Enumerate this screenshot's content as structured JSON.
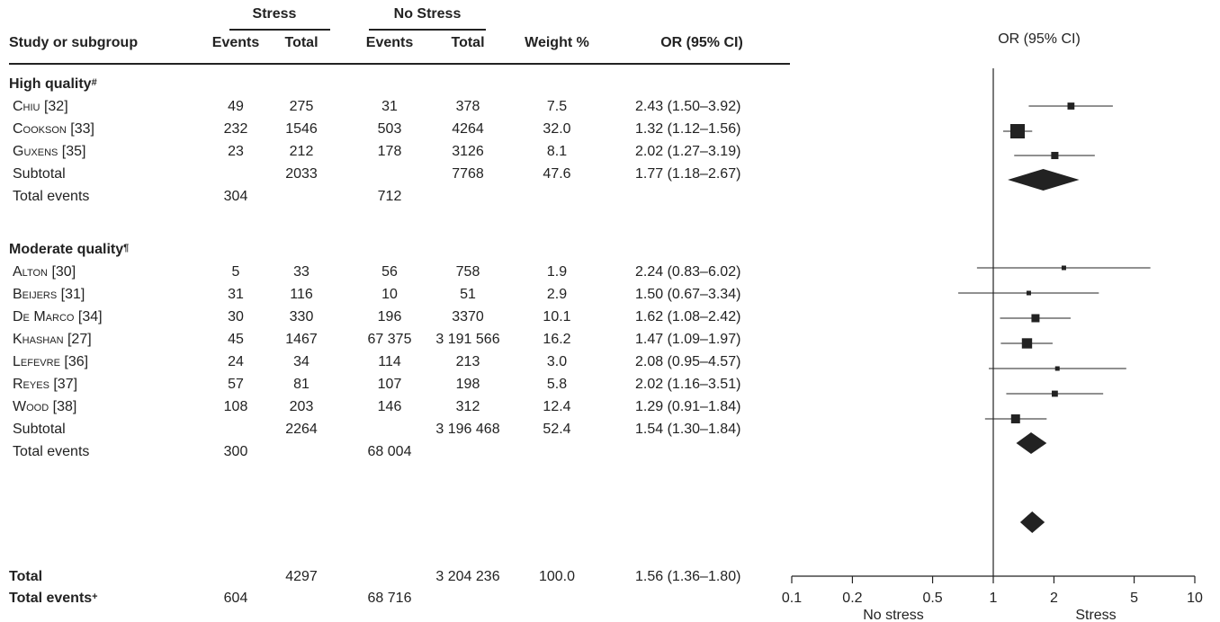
{
  "table": {
    "headers": {
      "group_stress": "Stress",
      "group_nostress": "No Stress",
      "study": "Study or subgroup",
      "events": "Events",
      "total": "Total",
      "weight": "Weight %",
      "or_ci": "OR (95% CI)"
    },
    "sections": [
      {
        "title": "High quality",
        "marker": "#",
        "studies": [
          {
            "name": "Chiu",
            "ref": "[32]",
            "s_events": "49",
            "s_total": "275",
            "n_events": "31",
            "n_total": "378",
            "weight": "7.5",
            "or_ci": "2.43 (1.50–3.92)"
          },
          {
            "name": "Cookson",
            "ref": "[33]",
            "s_events": "232",
            "s_total": "1546",
            "n_events": "503",
            "n_total": "4264",
            "weight": "32.0",
            "or_ci": "1.32 (1.12–1.56)"
          },
          {
            "name": "Guxens",
            "ref": "[35]",
            "s_events": "23",
            "s_total": "212",
            "n_events": "178",
            "n_total": "3126",
            "weight": "8.1",
            "or_ci": "2.02 (1.27–3.19)"
          }
        ],
        "subtotal": {
          "label": "Subtotal",
          "s_total": "2033",
          "n_total": "7768",
          "weight": "47.6",
          "or_ci": "1.77 (1.18–2.67)"
        },
        "total_events": {
          "label": "Total events",
          "s_events": "304",
          "n_events": "712"
        }
      },
      {
        "title": "Moderate quality",
        "marker": "¶",
        "studies": [
          {
            "name": "Alton",
            "ref": "[30]",
            "s_events": "5",
            "s_total": "33",
            "n_events": "56",
            "n_total": "758",
            "weight": "1.9",
            "or_ci": "2.24 (0.83–6.02)"
          },
          {
            "name": "Beijers",
            "ref": "[31]",
            "s_events": "31",
            "s_total": "116",
            "n_events": "10",
            "n_total": "51",
            "weight": "2.9",
            "or_ci": "1.50 (0.67–3.34)"
          },
          {
            "name": "De Marco",
            "ref": "[34]",
            "s_events": "30",
            "s_total": "330",
            "n_events": "196",
            "n_total": "3370",
            "weight": "10.1",
            "or_ci": "1.62 (1.08–2.42)"
          },
          {
            "name": "Khashan",
            "ref": "[27]",
            "s_events": "45",
            "s_total": "1467",
            "n_events": "67 375",
            "n_total": "3 191 566",
            "weight": "16.2",
            "or_ci": "1.47 (1.09–1.97)"
          },
          {
            "name": "Lefevre",
            "ref": "[36]",
            "s_events": "24",
            "s_total": "34",
            "n_events": "114",
            "n_total": "213",
            "weight": "3.0",
            "or_ci": "2.08 (0.95–4.57)"
          },
          {
            "name": "Reyes",
            "ref": "[37]",
            "s_events": "57",
            "s_total": "81",
            "n_events": "107",
            "n_total": "198",
            "weight": "5.8",
            "or_ci": "2.02 (1.16–3.51)"
          },
          {
            "name": "Wood",
            "ref": "[38]",
            "s_events": "108",
            "s_total": "203",
            "n_events": "146",
            "n_total": "312",
            "weight": "12.4",
            "or_ci": "1.29 (0.91–1.84)"
          }
        ],
        "subtotal": {
          "label": "Subtotal",
          "s_total": "2264",
          "n_total": "3 196 468",
          "weight": "52.4",
          "or_ci": "1.54 (1.30–1.84)"
        },
        "total_events": {
          "label": "Total events",
          "s_events": "300",
          "n_events": "68 004"
        }
      }
    ],
    "overall": {
      "label": "Total",
      "s_total": "4297",
      "n_total": "3 204 236",
      "weight": "100.0",
      "or_ci": "1.56 (1.36–1.80)"
    },
    "overall_events": {
      "label": "Total events",
      "marker": "+",
      "s_events": "604",
      "n_events": "68 716"
    }
  },
  "chart_data": {
    "type": "forest",
    "title": "OR (95% CI)",
    "x_scale": "log",
    "xlim": [
      0.1,
      10
    ],
    "x_ticks": [
      "0.1",
      "0.2",
      "0.5",
      "1",
      "2",
      "5",
      "10"
    ],
    "x_tick_values": [
      0.1,
      0.2,
      0.5,
      1,
      2,
      5,
      10
    ],
    "reference_line": 1,
    "left_label": "No stress",
    "right_label": "Stress",
    "studies": [
      {
        "or": 2.43,
        "lo": 1.5,
        "hi": 3.92,
        "weight": 7.5
      },
      {
        "or": 1.32,
        "lo": 1.12,
        "hi": 1.56,
        "weight": 32.0
      },
      {
        "or": 2.02,
        "lo": 1.27,
        "hi": 3.19,
        "weight": 8.1
      },
      {
        "or": 2.24,
        "lo": 0.83,
        "hi": 6.02,
        "weight": 1.9
      },
      {
        "or": 1.5,
        "lo": 0.67,
        "hi": 3.34,
        "weight": 2.9
      },
      {
        "or": 1.62,
        "lo": 1.08,
        "hi": 2.42,
        "weight": 10.1
      },
      {
        "or": 1.47,
        "lo": 1.09,
        "hi": 1.97,
        "weight": 16.2
      },
      {
        "or": 2.08,
        "lo": 0.95,
        "hi": 4.57,
        "weight": 3.0
      },
      {
        "or": 2.02,
        "lo": 1.16,
        "hi": 3.51,
        "weight": 5.8
      },
      {
        "or": 1.29,
        "lo": 0.91,
        "hi": 1.84,
        "weight": 12.4
      }
    ],
    "summaries": [
      {
        "or": 1.77,
        "lo": 1.18,
        "hi": 2.67
      },
      {
        "or": 1.54,
        "lo": 1.3,
        "hi": 1.84
      },
      {
        "or": 1.56,
        "lo": 1.36,
        "hi": 1.8
      }
    ],
    "colors": {
      "ink": "#222222"
    }
  }
}
